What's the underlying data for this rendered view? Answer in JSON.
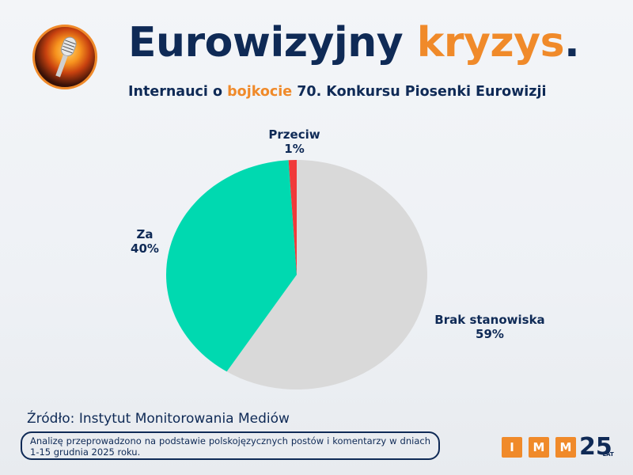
{
  "header": {
    "title_main": "Eurowizyjny ",
    "title_accent": "kryzys",
    "title_end": ".",
    "subtitle_pre": "Internauci o ",
    "subtitle_accent": "bojkocie",
    "subtitle_post": " 70. Konkursu Piosenki Eurowizji",
    "logo_icon": "flaming-microphone-icon"
  },
  "chart_data": {
    "type": "pie",
    "title": "Eurowizyjny kryzys.",
    "subtitle": "Internauci o bojkocie 70. Konkursu Piosenki Eurowizji",
    "categories": [
      "Brak stanowiska",
      "Za",
      "Przeciw"
    ],
    "values": [
      59,
      40,
      1
    ],
    "unit": "%",
    "colors": [
      "#d9d9d9",
      "#00d9b0",
      "#f03a3a"
    ],
    "legend": "none (direct labels)",
    "labels": [
      {
        "name": "Przeciw",
        "value": "1%"
      },
      {
        "name": "Za",
        "value": "40%"
      },
      {
        "name": "Brak stanowiska",
        "value": "59%"
      }
    ]
  },
  "labels": {
    "przeciw": {
      "name": "Przeciw",
      "value": "1%"
    },
    "za": {
      "name": "Za",
      "value": "40%"
    },
    "brak": {
      "name": "Brak stanowiska",
      "value": "59%"
    }
  },
  "footer": {
    "source": "Źródło: Instytut Monitorowania Mediów",
    "note": "Analizę przeprowadzono na podstawie polskojęzycznych postów i komentarzy w dniach 1-15 grudnia 2025 roku.",
    "brand_letters": [
      "I",
      "M",
      "M"
    ],
    "brand_number": "25",
    "brand_sub": "LAT"
  },
  "colors": {
    "navy": "#0f2a56",
    "orange": "#f08a2a"
  }
}
